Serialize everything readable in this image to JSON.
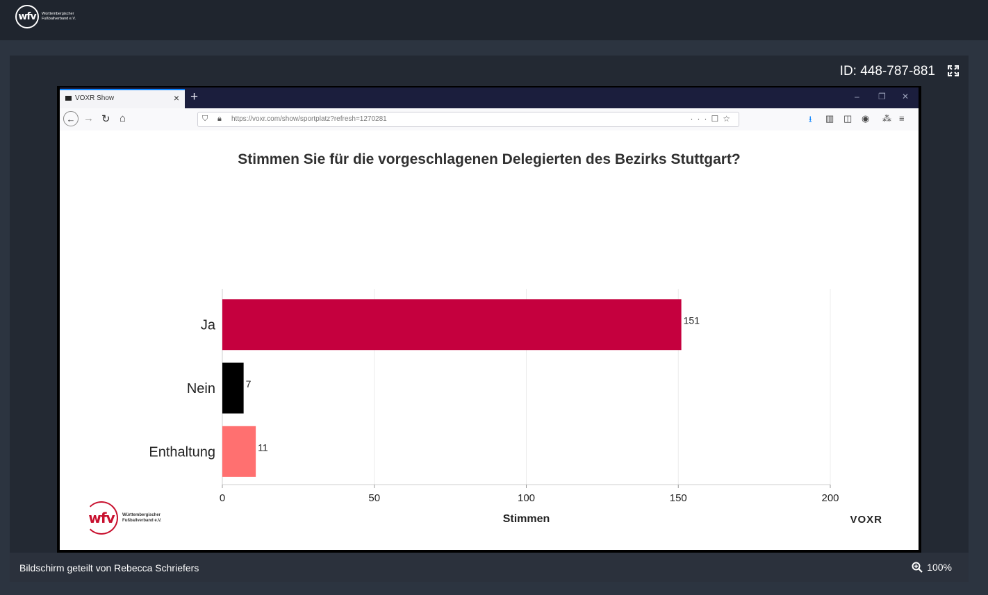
{
  "app": {
    "logo_text": "wfv",
    "logo_subtitle_line1": "Württembergischer",
    "logo_subtitle_line2": "Fußballverband e.V."
  },
  "session": {
    "id_label": "ID: 448-787-881",
    "fullscreen_icon": "fullscreen-icon"
  },
  "browser": {
    "tab_title": "VOXR Show",
    "new_tab_label": "+",
    "url": "https://voxr.com/show/sportplatz?refresh=1270281",
    "window_controls": [
      "–",
      "❐",
      "✕"
    ]
  },
  "slide": {
    "brand_right": "VOXR",
    "logo_text": "wfv",
    "logo_subtitle_line1": "Württembergischer",
    "logo_subtitle_line2": "Fußballverband e.V."
  },
  "chart_data": {
    "type": "bar",
    "orientation": "horizontal",
    "title": "Stimmen Sie für die vorgeschlagenen Delegierten des Bezirks Stuttgart?",
    "xlabel": "Stimmen",
    "ylabel": "",
    "categories": [
      "Ja",
      "Nein",
      "Enthaltung"
    ],
    "values": [
      151,
      7,
      11
    ],
    "colors": [
      "#c5003e",
      "#000000",
      "#ff7070"
    ],
    "xlim": [
      0,
      200
    ],
    "xticks": [
      0,
      50,
      100,
      150,
      200
    ],
    "data_labels": true,
    "grid": "vertical"
  },
  "footer": {
    "shared_by": "Bildschirm geteilt von Rebecca Schriefers",
    "zoom": "100%",
    "zoom_icon": "zoom-icon"
  }
}
